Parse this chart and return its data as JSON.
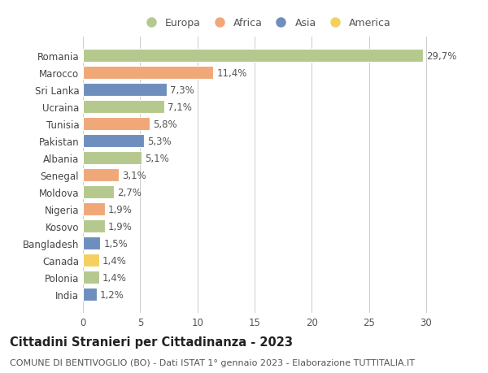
{
  "countries": [
    "India",
    "Polonia",
    "Canada",
    "Bangladesh",
    "Kosovo",
    "Nigeria",
    "Moldova",
    "Senegal",
    "Albania",
    "Pakistan",
    "Tunisia",
    "Ucraina",
    "Sri Lanka",
    "Marocco",
    "Romania"
  ],
  "values": [
    1.2,
    1.4,
    1.4,
    1.5,
    1.9,
    1.9,
    2.7,
    3.1,
    5.1,
    5.3,
    5.8,
    7.1,
    7.3,
    11.4,
    29.7
  ],
  "labels": [
    "1,2%",
    "1,4%",
    "1,4%",
    "1,5%",
    "1,9%",
    "1,9%",
    "2,7%",
    "3,1%",
    "5,1%",
    "5,3%",
    "5,8%",
    "7,1%",
    "7,3%",
    "11,4%",
    "29,7%"
  ],
  "continents": [
    "Asia",
    "Europa",
    "America",
    "Asia",
    "Europa",
    "Africa",
    "Europa",
    "Africa",
    "Europa",
    "Asia",
    "Africa",
    "Europa",
    "Asia",
    "Africa",
    "Europa"
  ],
  "continent_colors": {
    "Europa": "#b5c98e",
    "Africa": "#f0a878",
    "Asia": "#6e8fbd",
    "America": "#f5d060"
  },
  "legend_order": [
    "Europa",
    "Africa",
    "Asia",
    "America"
  ],
  "xlim": [
    0,
    32
  ],
  "xticks": [
    0,
    5,
    10,
    15,
    20,
    25,
    30
  ],
  "title": "Cittadini Stranieri per Cittadinanza - 2023",
  "subtitle": "COMUNE DI BENTIVOGLIO (BO) - Dati ISTAT 1° gennaio 2023 - Elaborazione TUTTITALIA.IT",
  "bg_color": "#ffffff",
  "grid_color": "#cccccc",
  "bar_height": 0.75,
  "label_fontsize": 8.5,
  "title_fontsize": 10.5,
  "subtitle_fontsize": 8,
  "ytick_fontsize": 8.5,
  "xtick_fontsize": 8.5
}
